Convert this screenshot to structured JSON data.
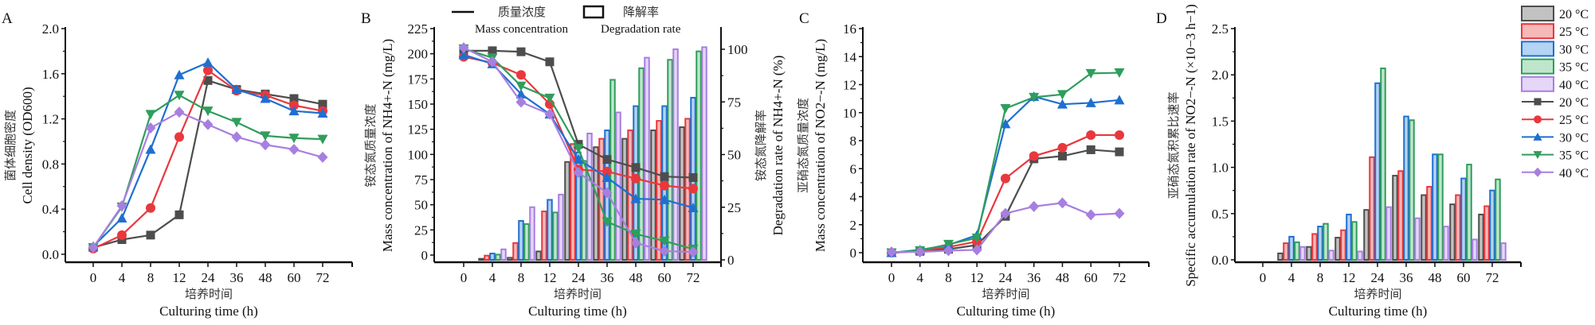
{
  "colors": {
    "20": "#4d4d4d",
    "25": "#e8383d",
    "30": "#1f6fd1",
    "35": "#2f9e5b",
    "40": "#a77fe0"
  },
  "fills": {
    "20": "#c2c2c2",
    "25": "#f7b8b8",
    "30": "#b5d3f2",
    "35": "#bfe6cd",
    "40": "#e6d6f8"
  },
  "legend": {
    "bars": [
      "20 °C",
      "25 °C",
      "30 °C",
      "35 °C",
      "40 °C"
    ],
    "lines": [
      "20 °C",
      "25 °C",
      "30 °C",
      "35 °C",
      "40 °C"
    ]
  },
  "chart_data": [
    {
      "panel": "A",
      "type": "line",
      "categories": [
        "0",
        "4",
        "8",
        "12",
        "24",
        "36",
        "48",
        "60",
        "72"
      ],
      "ylabel_cn": "菌体细胞密度",
      "ylabel": "Cell density (OD600)",
      "xlabel_cn": "培养时间",
      "xlabel": "Culturing time (h)",
      "ylim": [
        0,
        2.0
      ],
      "yticks": [
        "0.0",
        "0.4",
        "0.8",
        "1.2",
        "1.6",
        "2.0"
      ],
      "series": [
        {
          "name": "20 °C",
          "key": "20",
          "marker": "square",
          "values": [
            0.06,
            0.13,
            0.17,
            0.35,
            1.54,
            1.46,
            1.42,
            1.38,
            1.33
          ]
        },
        {
          "name": "25 °C",
          "key": "25",
          "marker": "circle",
          "values": [
            0.05,
            0.17,
            0.41,
            1.04,
            1.63,
            1.45,
            1.41,
            1.32,
            1.27
          ]
        },
        {
          "name": "30 °C",
          "key": "30",
          "marker": "triangle-up",
          "values": [
            0.07,
            0.32,
            0.93,
            1.59,
            1.7,
            1.46,
            1.38,
            1.27,
            1.25
          ]
        },
        {
          "name": "35 °C",
          "key": "35",
          "marker": "triangle-down",
          "values": [
            0.06,
            0.42,
            1.24,
            1.41,
            1.27,
            1.17,
            1.05,
            1.03,
            1.02
          ]
        },
        {
          "name": "40 °C",
          "key": "40",
          "marker": "diamond",
          "values": [
            0.06,
            0.43,
            1.12,
            1.26,
            1.15,
            1.04,
            0.97,
            0.93,
            0.86
          ]
        }
      ]
    },
    {
      "panel": "B",
      "type": "bar+line",
      "categories": [
        "0",
        "4",
        "8",
        "12",
        "24",
        "36",
        "48",
        "60",
        "72"
      ],
      "legend_line_cn": "质量浓度",
      "legend_line": "Mass concentration",
      "legend_bar_cn": "降解率",
      "legend_bar": "Degradation rate",
      "ylabel_cn": "铵态氮质量浓度",
      "ylabel": "Mass concentration of NH4+-N (mg/L)",
      "y2label_cn": "铵态氮降解率",
      "y2label": "Degradation rate of NH4+-N (%)",
      "xlabel_cn": "培养时间",
      "xlabel": "Culturing time (h)",
      "ylim": [
        0,
        225
      ],
      "yticks": [
        "0",
        "25",
        "50",
        "75",
        "100",
        "125",
        "150",
        "175",
        "200",
        "225"
      ],
      "y2lim": [
        0,
        110
      ],
      "y2ticks": [
        "0",
        "25",
        "50",
        "75",
        "100"
      ],
      "line_series": [
        {
          "name": "20 °C",
          "key": "20",
          "marker": "square",
          "values": [
            203,
            203,
            202,
            192,
            110,
            95,
            87,
            78,
            77
          ]
        },
        {
          "name": "25 °C",
          "key": "25",
          "marker": "circle",
          "values": [
            197,
            191,
            179,
            150,
            85,
            83,
            76,
            69,
            66
          ]
        },
        {
          "name": "30 °C",
          "key": "30",
          "marker": "triangle-up",
          "values": [
            199,
            190,
            160,
            140,
            95,
            77,
            56,
            55,
            47
          ]
        },
        {
          "name": "35 °C",
          "key": "35",
          "marker": "triangle-down",
          "values": [
            205,
            196,
            168,
            156,
            106,
            33,
            21,
            14,
            6
          ]
        },
        {
          "name": "40 °C",
          "key": "40",
          "marker": "diamond",
          "values": [
            206,
            192,
            152,
            140,
            82,
            62,
            12,
            4,
            3
          ]
        }
      ],
      "bar_series": [
        {
          "name": "20 °C",
          "key": "20",
          "values": [
            0,
            0.5,
            1,
            4,
            46.5,
            53.5,
            57.5,
            61.5,
            63
          ]
        },
        {
          "name": "25 °C",
          "key": "25",
          "values": [
            0,
            2,
            8,
            23,
            55,
            57.5,
            61.5,
            66,
            67
          ]
        },
        {
          "name": "30 °C",
          "key": "30",
          "values": [
            0,
            3,
            18.5,
            28.5,
            51,
            61.5,
            73,
            73,
            77
          ]
        },
        {
          "name": "35 °C",
          "key": "35",
          "values": [
            0,
            2.5,
            17,
            22.5,
            47,
            85.5,
            91,
            95,
            99
          ]
        },
        {
          "name": "40 °C",
          "key": "40",
          "values": [
            0,
            5,
            25,
            31,
            60,
            70,
            96,
            100,
            101
          ]
        }
      ]
    },
    {
      "panel": "C",
      "type": "line",
      "categories": [
        "0",
        "4",
        "8",
        "12",
        "24",
        "36",
        "48",
        "60",
        "72"
      ],
      "ylabel_cn": "亚硝态氮质量浓度",
      "ylabel": "Mass concentration of NO2−-N (mg/L)",
      "xlabel_cn": "培养时间",
      "xlabel": "Culturing time (h)",
      "ylim": [
        0,
        16
      ],
      "yticks": [
        "0",
        "2",
        "4",
        "6",
        "8",
        "10",
        "12",
        "14",
        "16"
      ],
      "series": [
        {
          "name": "20 °C",
          "key": "20",
          "marker": "square",
          "values": [
            0.0,
            0.1,
            0.25,
            0.55,
            2.6,
            6.7,
            6.9,
            7.35,
            7.2
          ]
        },
        {
          "name": "25 °C",
          "key": "25",
          "marker": "circle",
          "values": [
            0.0,
            0.12,
            0.4,
            0.8,
            5.3,
            6.9,
            7.5,
            8.4,
            8.4
          ]
        },
        {
          "name": "30 °C",
          "key": "30",
          "marker": "triangle-up",
          "values": [
            0.0,
            0.2,
            0.55,
            1.25,
            9.2,
            11.15,
            10.6,
            10.7,
            10.9
          ]
        },
        {
          "name": "35 °C",
          "key": "35",
          "marker": "triangle-down",
          "values": [
            0.0,
            0.15,
            0.6,
            1.05,
            10.3,
            11.1,
            11.3,
            12.8,
            12.85
          ]
        },
        {
          "name": "40 °C",
          "key": "40",
          "marker": "diamond",
          "values": [
            0.05,
            0.05,
            0.15,
            0.2,
            2.8,
            3.3,
            3.55,
            2.7,
            2.8
          ]
        }
      ]
    },
    {
      "panel": "D",
      "type": "bar",
      "categories": [
        "0",
        "4",
        "8",
        "12",
        "24",
        "36",
        "48",
        "60",
        "72"
      ],
      "ylabel_cn": "亚硝态氮积累比速率",
      "ylabel": "Specific accumulation rate of NO2−-N (×10−3 h−1)",
      "xlabel_cn": "培养时间",
      "xlabel": "Culturing time (h)",
      "ylim": [
        0,
        2.5
      ],
      "yticks": [
        "0.0",
        "0.5",
        "1.0",
        "1.5",
        "2.0",
        "2.5"
      ],
      "series": [
        {
          "name": "20 °C",
          "key": "20",
          "values": [
            0,
            0.07,
            0.14,
            0.24,
            0.54,
            0.91,
            0.7,
            0.6,
            0.49
          ]
        },
        {
          "name": "25 °C",
          "key": "25",
          "values": [
            0,
            0.18,
            0.28,
            0.32,
            1.11,
            0.96,
            0.79,
            0.7,
            0.58
          ]
        },
        {
          "name": "30 °C",
          "key": "30",
          "values": [
            0,
            0.25,
            0.36,
            0.49,
            1.91,
            1.55,
            1.14,
            0.88,
            0.75
          ]
        },
        {
          "name": "35 °C",
          "key": "35",
          "values": [
            0,
            0.19,
            0.39,
            0.41,
            2.07,
            1.51,
            1.14,
            1.03,
            0.87
          ]
        },
        {
          "name": "40 °C",
          "key": "40",
          "values": [
            0,
            0.14,
            0.1,
            0.09,
            0.57,
            0.45,
            0.36,
            0.22,
            0.18
          ]
        }
      ]
    }
  ],
  "panels": {
    "A": {
      "letter": "A"
    },
    "B": {
      "letter": "B"
    },
    "C": {
      "letter": "C"
    },
    "D": {
      "letter": "D"
    }
  }
}
